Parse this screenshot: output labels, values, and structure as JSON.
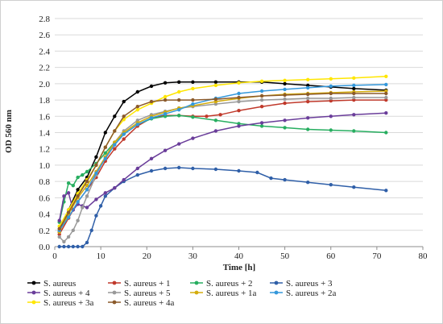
{
  "chart_data": {
    "type": "line",
    "title": "",
    "xlabel": "Time [h]",
    "ylabel": "OD 560 nm",
    "xlim": [
      0,
      80
    ],
    "ylim": [
      0,
      2.8
    ],
    "x_ticks": [
      0,
      10,
      20,
      30,
      40,
      50,
      60,
      70,
      80
    ],
    "y_ticks": [
      0.0,
      0.2,
      0.4,
      0.6,
      0.8,
      1.0,
      1.2,
      1.4,
      1.6,
      1.8,
      2.0,
      2.2,
      2.4,
      2.6,
      2.8
    ],
    "grid": "horizontal",
    "legend_position": "bottom",
    "series": [
      {
        "name": "S. aureus",
        "color": "#000000",
        "x": [
          1,
          3,
          5,
          7,
          9,
          11,
          13,
          15,
          18,
          21,
          24,
          27,
          30,
          35,
          40,
          45,
          50,
          55,
          60,
          65,
          72
        ],
        "y": [
          0.18,
          0.45,
          0.7,
          0.85,
          1.1,
          1.4,
          1.6,
          1.78,
          1.9,
          1.97,
          2.01,
          2.02,
          2.02,
          2.02,
          2.02,
          2.02,
          2.0,
          1.98,
          1.96,
          1.94,
          1.92
        ]
      },
      {
        "name": "S. aureus + 1",
        "color": "#c0392b",
        "x": [
          1,
          3,
          5,
          7,
          9,
          11,
          13,
          15,
          18,
          21,
          24,
          27,
          30,
          33,
          36,
          40,
          45,
          50,
          55,
          60,
          65,
          72
        ],
        "y": [
          0.15,
          0.35,
          0.55,
          0.7,
          0.85,
          1.05,
          1.2,
          1.32,
          1.48,
          1.58,
          1.61,
          1.61,
          1.6,
          1.6,
          1.62,
          1.67,
          1.72,
          1.76,
          1.78,
          1.79,
          1.8,
          1.8
        ]
      },
      {
        "name": "S. aureus + 2",
        "color": "#27ae60",
        "x": [
          1,
          2,
          3,
          4,
          5,
          6,
          7,
          9,
          11,
          13,
          15,
          18,
          21,
          24,
          27,
          30,
          35,
          40,
          45,
          50,
          55,
          60,
          65,
          72
        ],
        "y": [
          0.3,
          0.55,
          0.78,
          0.75,
          0.85,
          0.88,
          0.92,
          1.02,
          1.15,
          1.28,
          1.38,
          1.5,
          1.57,
          1.6,
          1.61,
          1.59,
          1.55,
          1.51,
          1.48,
          1.46,
          1.44,
          1.43,
          1.42,
          1.4
        ]
      },
      {
        "name": "S. aureus + 3",
        "color": "#2f5fa8",
        "x": [
          1,
          2,
          3,
          4,
          5,
          6,
          7,
          8,
          9,
          10,
          11,
          13,
          15,
          18,
          21,
          24,
          27,
          30,
          35,
          40,
          44,
          47,
          50,
          55,
          60,
          65,
          72
        ],
        "y": [
          0.0,
          0.0,
          0.0,
          0.0,
          0.0,
          0.0,
          0.05,
          0.2,
          0.38,
          0.5,
          0.62,
          0.72,
          0.8,
          0.88,
          0.93,
          0.96,
          0.97,
          0.96,
          0.95,
          0.93,
          0.91,
          0.84,
          0.82,
          0.79,
          0.76,
          0.73,
          0.69
        ]
      },
      {
        "name": "S. aureus + 4",
        "color": "#6a3d9a",
        "x": [
          1,
          2,
          3,
          4,
          5,
          6,
          7,
          9,
          11,
          13,
          15,
          18,
          21,
          24,
          27,
          30,
          35,
          40,
          45,
          50,
          55,
          60,
          65,
          72
        ],
        "y": [
          0.32,
          0.62,
          0.66,
          0.45,
          0.52,
          0.5,
          0.48,
          0.58,
          0.66,
          0.72,
          0.82,
          0.96,
          1.08,
          1.18,
          1.26,
          1.33,
          1.42,
          1.48,
          1.52,
          1.55,
          1.58,
          1.6,
          1.62,
          1.64
        ]
      },
      {
        "name": "S. aureus + 5",
        "color": "#999999",
        "x": [
          1,
          2,
          3,
          4,
          5,
          6,
          7,
          9,
          11,
          13,
          15,
          18,
          21,
          24,
          27,
          30,
          35,
          40,
          45,
          50,
          55,
          60,
          65,
          72
        ],
        "y": [
          0.12,
          0.06,
          0.12,
          0.2,
          0.32,
          0.48,
          0.62,
          0.88,
          1.1,
          1.28,
          1.42,
          1.55,
          1.62,
          1.66,
          1.7,
          1.72,
          1.75,
          1.78,
          1.8,
          1.81,
          1.82,
          1.82,
          1.83,
          1.83
        ]
      },
      {
        "name": "S. aureus + 1a",
        "color": "#d4ac0d",
        "x": [
          1,
          3,
          5,
          7,
          9,
          11,
          13,
          15,
          18,
          21,
          24,
          27,
          30,
          35,
          40,
          45,
          50,
          55,
          60,
          65,
          72
        ],
        "y": [
          0.18,
          0.4,
          0.6,
          0.75,
          0.92,
          1.1,
          1.28,
          1.4,
          1.52,
          1.6,
          1.65,
          1.7,
          1.73,
          1.78,
          1.82,
          1.85,
          1.87,
          1.88,
          1.89,
          1.9,
          1.91
        ]
      },
      {
        "name": "S. aureus + 2a",
        "color": "#3498db",
        "x": [
          1,
          3,
          5,
          7,
          9,
          11,
          13,
          15,
          18,
          21,
          24,
          27,
          30,
          35,
          40,
          45,
          50,
          55,
          60,
          65,
          72
        ],
        "y": [
          0.2,
          0.36,
          0.55,
          0.7,
          0.9,
          1.08,
          1.25,
          1.38,
          1.5,
          1.58,
          1.63,
          1.68,
          1.75,
          1.82,
          1.88,
          1.91,
          1.93,
          1.95,
          1.97,
          1.98,
          1.99
        ]
      },
      {
        "name": "S. aureus + 3a",
        "color": "#ffe600",
        "x": [
          1,
          3,
          5,
          7,
          9,
          11,
          13,
          15,
          18,
          21,
          24,
          27,
          30,
          35,
          40,
          45,
          50,
          55,
          60,
          65,
          72
        ],
        "y": [
          0.25,
          0.45,
          0.65,
          0.82,
          1.0,
          1.22,
          1.42,
          1.56,
          1.68,
          1.76,
          1.84,
          1.9,
          1.94,
          1.98,
          2.01,
          2.03,
          2.04,
          2.05,
          2.06,
          2.07,
          2.09
        ]
      },
      {
        "name": "S. aureus + 4a",
        "color": "#8b5a2b",
        "x": [
          1,
          3,
          5,
          7,
          9,
          11,
          13,
          15,
          18,
          21,
          24,
          27,
          30,
          35,
          40,
          45,
          50,
          55,
          60,
          65,
          72
        ],
        "y": [
          0.22,
          0.42,
          0.62,
          0.8,
          1.0,
          1.22,
          1.42,
          1.6,
          1.72,
          1.78,
          1.8,
          1.8,
          1.8,
          1.81,
          1.83,
          1.85,
          1.86,
          1.87,
          1.88,
          1.88,
          1.88
        ]
      }
    ]
  }
}
